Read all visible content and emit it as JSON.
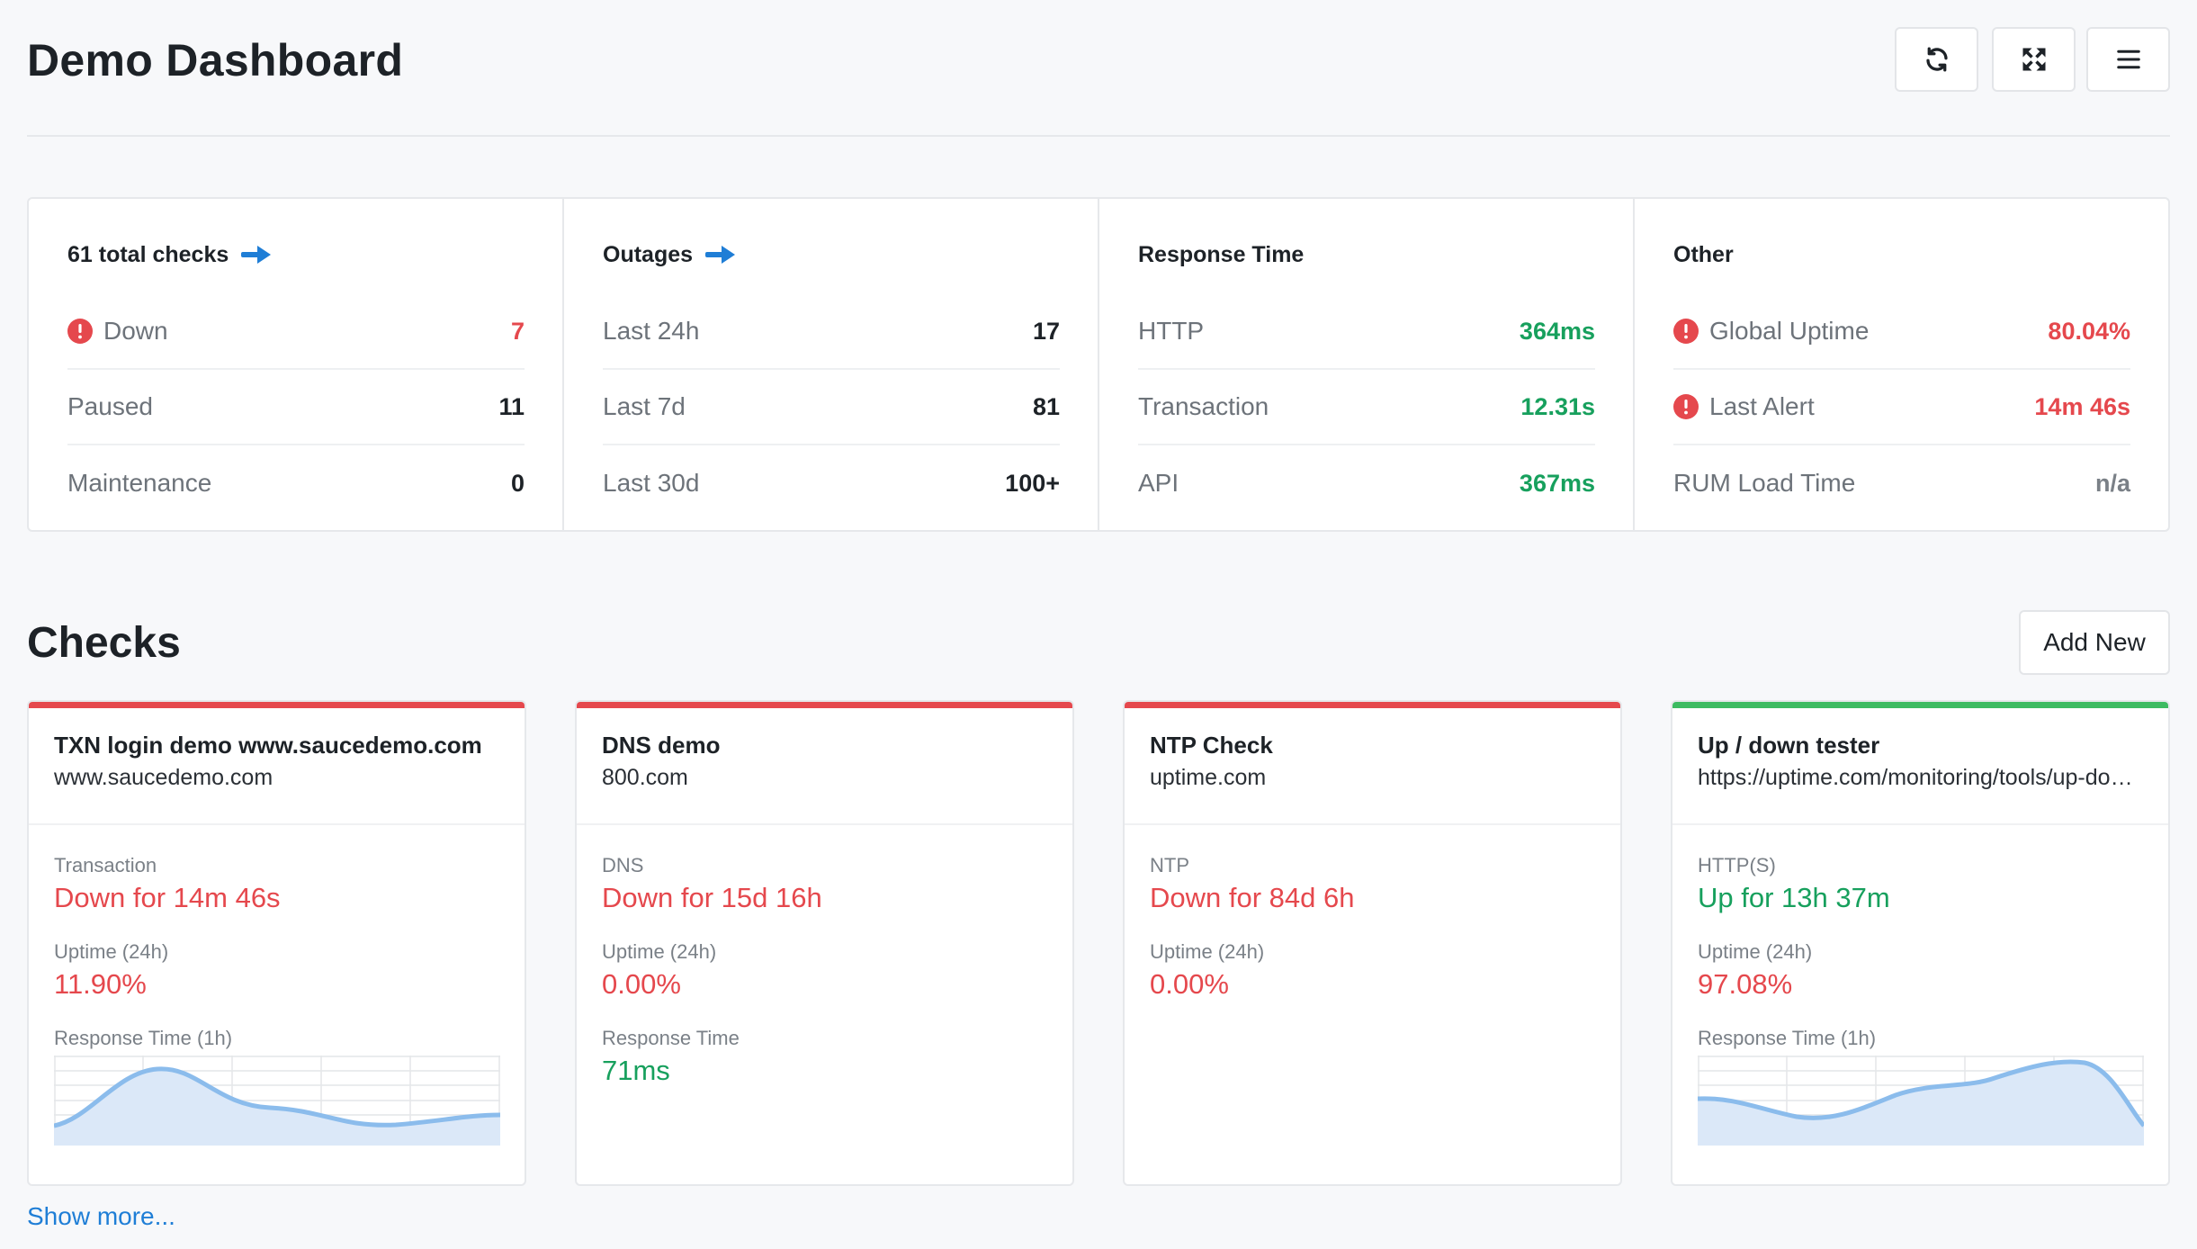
{
  "header": {
    "title": "Demo Dashboard",
    "buttons": [
      {
        "icon": "refresh-icon"
      },
      {
        "icon": "fullscreen-icon"
      },
      {
        "icon": "menu-icon"
      }
    ]
  },
  "stats": {
    "total_checks": {
      "title": "61 total checks",
      "rows": [
        {
          "label": "Down",
          "value": "7",
          "alert": true,
          "color": "#e5484d"
        },
        {
          "label": "Paused",
          "value": "11"
        },
        {
          "label": "Maintenance",
          "value": "0"
        }
      ]
    },
    "outages": {
      "title": "Outages",
      "rows": [
        {
          "label": "Last 24h",
          "value": "17"
        },
        {
          "label": "Last 7d",
          "value": "81"
        },
        {
          "label": "Last 30d",
          "value": "100+"
        }
      ]
    },
    "response_time": {
      "title": "Response Time",
      "rows": [
        {
          "label": "HTTP",
          "value": "364ms",
          "color": "#17a05d"
        },
        {
          "label": "Transaction",
          "value": "12.31s",
          "color": "#17a05d"
        },
        {
          "label": "API",
          "value": "367ms",
          "color": "#17a05d"
        }
      ]
    },
    "other": {
      "title": "Other",
      "rows": [
        {
          "label": "Global Uptime",
          "value": "80.04%",
          "alert": true,
          "color": "#e5484d"
        },
        {
          "label": "Last Alert",
          "value": "14m 46s",
          "alert": true,
          "color": "#e5484d"
        },
        {
          "label": "RUM Load Time",
          "value": "n/a"
        }
      ]
    }
  },
  "checks": {
    "title": "Checks",
    "add_new_label": "Add New",
    "show_more_label": "Show more...",
    "cards": [
      {
        "name": "TXN login demo www.saucedemo.com",
        "url": "www.saucedemo.com",
        "type": "Transaction",
        "status": "Down for 14m 46s",
        "status_color": "red",
        "uptime_label": "Uptime (24h)",
        "uptime": "11.90%",
        "response_label": "Response Time (1h)",
        "has_sparkline": true
      },
      {
        "name": "DNS demo",
        "url": "800.com",
        "type": "DNS",
        "status": "Down for 15d 16h",
        "status_color": "red",
        "uptime_label": "Uptime (24h)",
        "uptime": "0.00%",
        "response_label": "Response Time",
        "response_value": "71ms"
      },
      {
        "name": "NTP Check",
        "url": "uptime.com",
        "type": "NTP",
        "status": "Down for 84d 6h",
        "status_color": "red",
        "uptime_label": "Uptime (24h)",
        "uptime": "0.00%"
      },
      {
        "name": "Up / down tester",
        "url": "https://uptime.com/monitoring/tools/up-down-tester",
        "type": "HTTP(S)",
        "status": "Up for 13h 37m",
        "status_color": "green",
        "uptime_label": "Uptime (24h)",
        "uptime": "97.08%",
        "response_label": "Response Time (1h)",
        "has_sparkline": true
      }
    ]
  },
  "colors": {
    "down": "#e5484d",
    "up": "#17a05d",
    "accent": "#1f7ed6",
    "sparkline_line": "#8bbcec",
    "sparkline_fill": "#dbe8f8"
  }
}
